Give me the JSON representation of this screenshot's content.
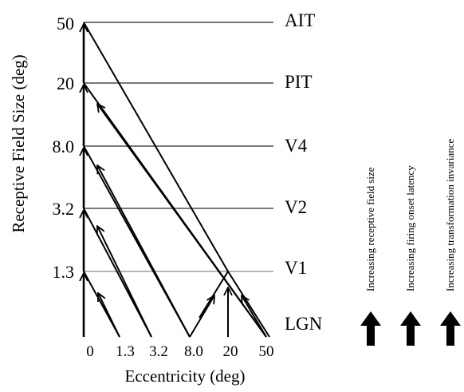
{
  "y_axis": {
    "label": "Receptive Field Size (deg)",
    "ticks": [
      "50",
      "20",
      "8.0",
      "3.2",
      "1.3"
    ]
  },
  "x_axis": {
    "label": "Eccentricity (deg)",
    "ticks": [
      "0",
      "1.3",
      "3.2",
      "8.0",
      "20",
      "50"
    ]
  },
  "areas": [
    "AIT",
    "PIT",
    "V4",
    "V2",
    "V1",
    "LGN"
  ],
  "trends": [
    {
      "label": "Increasing receptive field size",
      "arrow_icon": "up-arrow-icon"
    },
    {
      "label": "Increasing firing onset latency",
      "arrow_icon": "up-arrow-icon"
    },
    {
      "label": "Increasing transformation invariance",
      "arrow_icon": "up-arrow-icon"
    }
  ],
  "colors": {
    "ink": "#000000",
    "gridline": "#666666",
    "v1_line": "#aaaaaa"
  }
}
